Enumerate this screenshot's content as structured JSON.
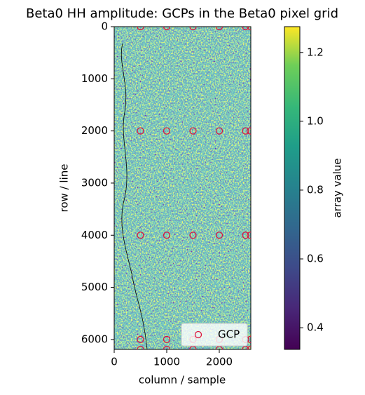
{
  "chart_data": {
    "type": "scatter",
    "title": "Beta0 HH amplitude: GCPs in the Beta0 pixel grid",
    "xlabel": "column / sample",
    "ylabel": "row / line",
    "xlim": [
      0,
      2600
    ],
    "ylim": [
      6190,
      0
    ],
    "xticks": [
      0,
      1000,
      2000
    ],
    "yticks": [
      0,
      1000,
      2000,
      3000,
      4000,
      5000,
      6000
    ],
    "legend": "lower right",
    "series": [
      {
        "name": "GCP",
        "color": "#dc143c",
        "x": [
          500,
          1000,
          1500,
          2000,
          2500,
          2590,
          500,
          1000,
          1500,
          2000,
          2500,
          2590,
          500,
          1000,
          1500,
          2000,
          2500,
          2590,
          500,
          1000,
          1500,
          2000,
          2500,
          2590,
          500,
          1000,
          1500,
          2000,
          2500,
          2590
        ],
        "values": [
          0,
          0,
          0,
          0,
          0,
          0,
          2000,
          2000,
          2000,
          2000,
          2000,
          2000,
          4000,
          4000,
          4000,
          4000,
          4000,
          4000,
          6000,
          6000,
          6000,
          6000,
          6000,
          6000,
          6190,
          6190,
          6190,
          6190,
          6190,
          6190
        ]
      }
    ],
    "colorbar": {
      "label": "array value",
      "lim": [
        0.337,
        1.275
      ],
      "ticks": [
        0.4,
        0.6,
        0.8,
        {
          "value": 1,
          "label": "1.0"
        },
        1.2
      ]
    }
  }
}
